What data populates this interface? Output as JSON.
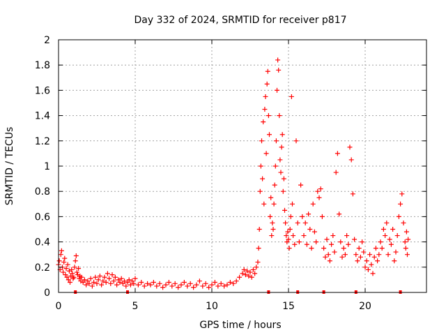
{
  "chart_data": {
    "type": "scatter",
    "title": "Day 332 of 2024, SRMTID for receiver p817",
    "xlabel": "GPS time / hours",
    "ylabel": "SRMTID / TECUs",
    "xlim": [
      0,
      24
    ],
    "ylim": [
      0,
      2
    ],
    "x_ticks": [
      0,
      5,
      10,
      15,
      20
    ],
    "y_ticks": [
      0,
      0.2,
      0.4,
      0.6,
      0.8,
      1,
      1.2,
      1.4,
      1.6,
      1.8,
      2
    ],
    "x_tick_labels": [
      "0",
      "5",
      "10",
      "15",
      "20"
    ],
    "y_tick_labels": [
      "0",
      "0.2",
      "0.4",
      "0.6",
      "0.8",
      "1",
      "1.2",
      "1.4",
      "1.6",
      "1.8",
      "2"
    ],
    "grid": true,
    "marker": "+",
    "color": "#ff0000",
    "baseline_markers_x": [
      1.1,
      4.5,
      13.7,
      15.6,
      17.3,
      19.4,
      22.3
    ],
    "series": [
      {
        "name": "SRMTID",
        "points": [
          [
            0.0,
            0.22
          ],
          [
            0.05,
            0.25
          ],
          [
            0.1,
            0.18
          ],
          [
            0.15,
            0.3
          ],
          [
            0.2,
            0.33
          ],
          [
            0.25,
            0.2
          ],
          [
            0.3,
            0.16
          ],
          [
            0.35,
            0.24
          ],
          [
            0.4,
            0.27
          ],
          [
            0.45,
            0.14
          ],
          [
            0.5,
            0.19
          ],
          [
            0.55,
            0.12
          ],
          [
            0.6,
            0.22
          ],
          [
            0.65,
            0.1
          ],
          [
            0.7,
            0.17
          ],
          [
            0.75,
            0.08
          ],
          [
            0.8,
            0.13
          ],
          [
            0.85,
            0.18
          ],
          [
            0.9,
            0.15
          ],
          [
            0.95,
            0.11
          ],
          [
            1.0,
            0.12
          ],
          [
            1.05,
            0.2
          ],
          [
            1.1,
            0.25
          ],
          [
            1.15,
            0.29
          ],
          [
            1.2,
            0.16
          ],
          [
            1.25,
            0.14
          ],
          [
            1.3,
            0.19
          ],
          [
            1.35,
            0.11
          ],
          [
            1.4,
            0.13
          ],
          [
            1.45,
            0.09
          ],
          [
            1.5,
            0.12
          ],
          [
            1.6,
            0.08
          ],
          [
            1.7,
            0.1
          ],
          [
            1.8,
            0.06
          ],
          [
            1.9,
            0.09
          ],
          [
            2.0,
            0.07
          ],
          [
            2.1,
            0.11
          ],
          [
            2.2,
            0.05
          ],
          [
            2.3,
            0.08
          ],
          [
            2.4,
            0.12
          ],
          [
            2.5,
            0.07
          ],
          [
            2.6,
            0.1
          ],
          [
            2.7,
            0.13
          ],
          [
            2.8,
            0.06
          ],
          [
            2.9,
            0.09
          ],
          [
            3.0,
            0.12
          ],
          [
            3.1,
            0.08
          ],
          [
            3.2,
            0.15
          ],
          [
            3.3,
            0.11
          ],
          [
            3.4,
            0.07
          ],
          [
            3.5,
            0.14
          ],
          [
            3.6,
            0.09
          ],
          [
            3.7,
            0.12
          ],
          [
            3.8,
            0.06
          ],
          [
            3.9,
            0.1
          ],
          [
            4.0,
            0.08
          ],
          [
            4.1,
            0.11
          ],
          [
            4.2,
            0.07
          ],
          [
            4.3,
            0.09
          ],
          [
            4.4,
            0.05
          ],
          [
            4.5,
            0.08
          ],
          [
            4.6,
            0.1
          ],
          [
            4.7,
            0.06
          ],
          [
            4.8,
            0.09
          ],
          [
            4.9,
            0.07
          ],
          [
            5.0,
            0.11
          ],
          [
            5.2,
            0.06
          ],
          [
            5.4,
            0.08
          ],
          [
            5.6,
            0.05
          ],
          [
            5.8,
            0.07
          ],
          [
            6.0,
            0.06
          ],
          [
            6.2,
            0.08
          ],
          [
            6.4,
            0.05
          ],
          [
            6.6,
            0.07
          ],
          [
            6.8,
            0.04
          ],
          [
            7.0,
            0.06
          ],
          [
            7.2,
            0.08
          ],
          [
            7.4,
            0.05
          ],
          [
            7.6,
            0.07
          ],
          [
            7.8,
            0.04
          ],
          [
            8.0,
            0.06
          ],
          [
            8.2,
            0.08
          ],
          [
            8.4,
            0.05
          ],
          [
            8.6,
            0.07
          ],
          [
            8.8,
            0.04
          ],
          [
            9.0,
            0.06
          ],
          [
            9.2,
            0.09
          ],
          [
            9.4,
            0.05
          ],
          [
            9.6,
            0.07
          ],
          [
            9.8,
            0.04
          ],
          [
            10.0,
            0.06
          ],
          [
            10.2,
            0.08
          ],
          [
            10.4,
            0.05
          ],
          [
            10.6,
            0.07
          ],
          [
            10.8,
            0.05
          ],
          [
            11.0,
            0.06
          ],
          [
            11.2,
            0.08
          ],
          [
            11.4,
            0.07
          ],
          [
            11.6,
            0.09
          ],
          [
            11.8,
            0.12
          ],
          [
            12.0,
            0.15
          ],
          [
            12.1,
            0.18
          ],
          [
            12.2,
            0.14
          ],
          [
            12.3,
            0.17
          ],
          [
            12.4,
            0.13
          ],
          [
            12.5,
            0.16
          ],
          [
            12.6,
            0.12
          ],
          [
            12.7,
            0.18
          ],
          [
            12.8,
            0.15
          ],
          [
            12.9,
            0.2
          ],
          [
            13.0,
            0.24
          ],
          [
            13.05,
            0.35
          ],
          [
            13.1,
            0.5
          ],
          [
            13.15,
            0.8
          ],
          [
            13.2,
            1.0
          ],
          [
            13.25,
            1.2
          ],
          [
            13.3,
            0.9
          ],
          [
            13.35,
            1.35
          ],
          [
            13.4,
            0.7
          ],
          [
            13.45,
            1.45
          ],
          [
            13.5,
            1.55
          ],
          [
            13.55,
            1.1
          ],
          [
            13.6,
            1.65
          ],
          [
            13.65,
            1.75
          ],
          [
            13.7,
            1.4
          ],
          [
            13.75,
            1.25
          ],
          [
            13.8,
            0.6
          ],
          [
            13.85,
            0.75
          ],
          [
            13.9,
            0.45
          ],
          [
            13.95,
            0.55
          ],
          [
            14.0,
            0.5
          ],
          [
            14.05,
            0.7
          ],
          [
            14.1,
            0.85
          ],
          [
            14.15,
            1.0
          ],
          [
            14.2,
            1.2
          ],
          [
            14.25,
            1.6
          ],
          [
            14.3,
            1.84
          ],
          [
            14.35,
            1.76
          ],
          [
            14.4,
            1.4
          ],
          [
            14.45,
            1.05
          ],
          [
            14.5,
            0.95
          ],
          [
            14.55,
            1.15
          ],
          [
            14.6,
            1.25
          ],
          [
            14.65,
            0.8
          ],
          [
            14.7,
            0.9
          ],
          [
            14.75,
            0.65
          ],
          [
            14.8,
            0.55
          ],
          [
            14.85,
            0.45
          ],
          [
            14.9,
            0.4
          ],
          [
            14.95,
            0.48
          ],
          [
            15.0,
            0.42
          ],
          [
            15.05,
            0.35
          ],
          [
            15.1,
            0.5
          ],
          [
            15.15,
            0.6
          ],
          [
            15.2,
            1.55
          ],
          [
            15.25,
            0.7
          ],
          [
            15.3,
            0.45
          ],
          [
            15.4,
            0.38
          ],
          [
            15.5,
            1.2
          ],
          [
            15.6,
            0.55
          ],
          [
            15.7,
            0.4
          ],
          [
            15.8,
            0.85
          ],
          [
            15.9,
            0.6
          ],
          [
            16.0,
            0.45
          ],
          [
            16.1,
            0.55
          ],
          [
            16.2,
            0.38
          ],
          [
            16.3,
            0.62
          ],
          [
            16.4,
            0.5
          ],
          [
            16.5,
            0.35
          ],
          [
            16.6,
            0.7
          ],
          [
            16.7,
            0.48
          ],
          [
            16.8,
            0.4
          ],
          [
            16.9,
            0.8
          ],
          [
            17.0,
            0.75
          ],
          [
            17.1,
            0.82
          ],
          [
            17.2,
            0.6
          ],
          [
            17.3,
            0.35
          ],
          [
            17.4,
            0.28
          ],
          [
            17.5,
            0.42
          ],
          [
            17.6,
            0.3
          ],
          [
            17.7,
            0.25
          ],
          [
            17.8,
            0.38
          ],
          [
            17.9,
            0.45
          ],
          [
            18.0,
            0.32
          ],
          [
            18.1,
            0.95
          ],
          [
            18.2,
            1.1
          ],
          [
            18.3,
            0.62
          ],
          [
            18.4,
            0.4
          ],
          [
            18.5,
            0.28
          ],
          [
            18.6,
            0.35
          ],
          [
            18.7,
            0.3
          ],
          [
            18.8,
            0.45
          ],
          [
            18.9,
            0.38
          ],
          [
            19.0,
            1.15
          ],
          [
            19.1,
            1.05
          ],
          [
            19.2,
            0.78
          ],
          [
            19.3,
            0.42
          ],
          [
            19.4,
            0.3
          ],
          [
            19.5,
            0.25
          ],
          [
            19.6,
            0.35
          ],
          [
            19.7,
            0.28
          ],
          [
            19.8,
            0.4
          ],
          [
            19.9,
            0.32
          ],
          [
            20.0,
            0.2
          ],
          [
            20.1,
            0.25
          ],
          [
            20.2,
            0.18
          ],
          [
            20.3,
            0.3
          ],
          [
            20.4,
            0.22
          ],
          [
            20.5,
            0.15
          ],
          [
            20.6,
            0.28
          ],
          [
            20.7,
            0.35
          ],
          [
            20.8,
            0.25
          ],
          [
            20.9,
            0.3
          ],
          [
            21.0,
            0.4
          ],
          [
            21.1,
            0.35
          ],
          [
            21.2,
            0.5
          ],
          [
            21.3,
            0.45
          ],
          [
            21.4,
            0.55
          ],
          [
            21.5,
            0.3
          ],
          [
            21.6,
            0.42
          ],
          [
            21.7,
            0.38
          ],
          [
            21.8,
            0.5
          ],
          [
            21.9,
            0.25
          ],
          [
            22.0,
            0.32
          ],
          [
            22.1,
            0.45
          ],
          [
            22.2,
            0.6
          ],
          [
            22.3,
            0.7
          ],
          [
            22.4,
            0.78
          ],
          [
            22.5,
            0.55
          ],
          [
            22.6,
            0.4
          ],
          [
            22.65,
            0.35
          ],
          [
            22.7,
            0.48
          ],
          [
            22.75,
            0.3
          ],
          [
            22.8,
            0.42
          ]
        ]
      }
    ]
  }
}
